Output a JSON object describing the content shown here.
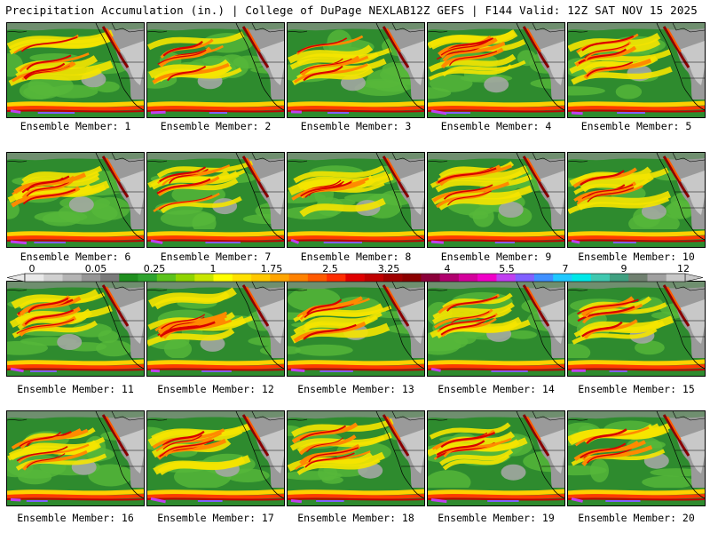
{
  "header": {
    "title": "Precipitation Accumulation (in.) | College of DuPage NEXLAB",
    "run_info": "12Z GEFS | F144 Valid: 12Z SAT NOV 15 2025"
  },
  "members": [
    {
      "label": "Ensemble Member: 1"
    },
    {
      "label": "Ensemble Member: 2"
    },
    {
      "label": "Ensemble Member: 3"
    },
    {
      "label": "Ensemble Member: 4"
    },
    {
      "label": "Ensemble Member: 5"
    },
    {
      "label": "Ensemble Member: 6"
    },
    {
      "label": "Ensemble Member: 7"
    },
    {
      "label": "Ensemble Member: 8"
    },
    {
      "label": "Ensemble Member: 9"
    },
    {
      "label": "Ensemble Member: 10"
    },
    {
      "label": "Ensemble Member: 11"
    },
    {
      "label": "Ensemble Member: 12"
    },
    {
      "label": "Ensemble Member: 13"
    },
    {
      "label": "Ensemble Member: 14"
    },
    {
      "label": "Ensemble Member: 15"
    },
    {
      "label": "Ensemble Member: 16"
    },
    {
      "label": "Ensemble Member: 17"
    },
    {
      "label": "Ensemble Member: 18"
    },
    {
      "label": "Ensemble Member: 19"
    },
    {
      "label": "Ensemble Member: 20"
    }
  ],
  "colorbar": {
    "tick_labels": [
      "0",
      "0.05",
      "0.25",
      "1",
      "1.75",
      "2.5",
      "3.25",
      "4",
      "5.5",
      "7",
      "9",
      "12"
    ],
    "colors": [
      "#e8e8e8",
      "#d0d0d0",
      "#b4b4b4",
      "#969696",
      "#7a7a7a",
      "#1f8f1f",
      "#2ea32e",
      "#5cc21c",
      "#8fd400",
      "#c8e600",
      "#ffff00",
      "#ffe100",
      "#ffc800",
      "#ffa500",
      "#ff8200",
      "#ff5a00",
      "#ff2d00",
      "#e00000",
      "#c00000",
      "#a00000",
      "#8b0000",
      "#8b003a",
      "#b0006e",
      "#d4009c",
      "#f000c8",
      "#c040f0",
      "#8060ff",
      "#4090ff",
      "#20c8ff",
      "#00e8e8",
      "#40c8b0",
      "#40a080",
      "#708070",
      "#a0a0a0",
      "#c8c8c8"
    ]
  }
}
